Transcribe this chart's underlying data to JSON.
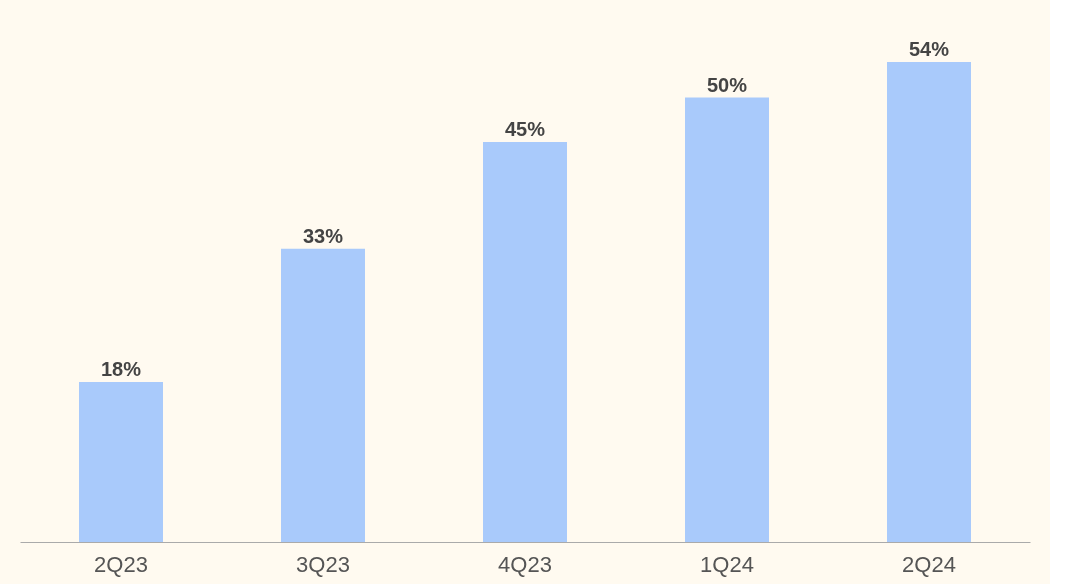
{
  "chart_data": {
    "type": "bar",
    "categories": [
      "2Q23",
      "3Q23",
      "4Q23",
      "1Q24",
      "2Q24"
    ],
    "values": [
      18,
      33,
      45,
      50,
      54
    ],
    "value_labels": [
      "18%",
      "33%",
      "45%",
      "50%",
      "54%"
    ],
    "color": "#a9cafb",
    "grid": false
  }
}
